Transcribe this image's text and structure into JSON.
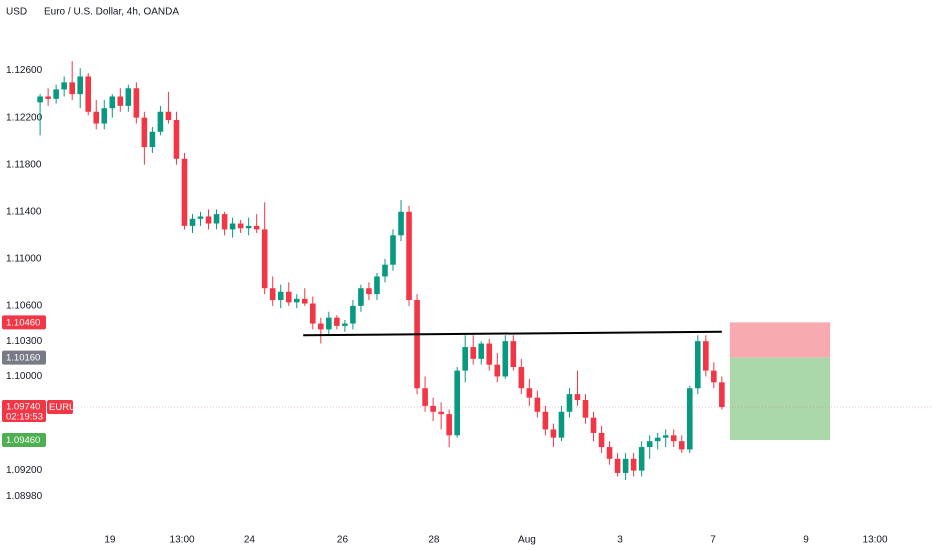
{
  "chart_data": {
    "type": "candlestick",
    "currency": "USD",
    "title": "Euro / U.S. Dollar, 4h, OANDA",
    "symbol": "EURUSD",
    "countdown": "02:19:53",
    "up_color": "#089981",
    "down_color": "#f23645",
    "open": [
      1.1233,
      1.1238,
      1.1236,
      1.1244,
      1.125,
      1.124,
      1.1255,
      1.1225,
      1.1215,
      1.1228,
      1.1238,
      1.123,
      1.1245,
      1.122,
      1.1195,
      1.1208,
      1.1225,
      1.1218,
      1.1185,
      1.1128,
      1.1134,
      1.1136,
      1.113,
      1.1138,
      1.1125,
      1.113,
      1.1126,
      1.1128,
      1.1125,
      1.1075,
      1.1065,
      1.1072,
      1.1063,
      1.1066,
      1.1062,
      1.1045,
      1.104,
      1.105,
      1.1043,
      1.1045,
      1.106,
      1.1075,
      1.107,
      1.1085,
      1.1095,
      1.112,
      1.114,
      1.1065,
      1.099,
      1.0975,
      1.097,
      1.0968,
      1.095,
      1.1005,
      1.1025,
      1.1015,
      1.1028,
      1.101,
      1.1,
      1.103,
      1.1008,
      1.099,
      1.0982,
      1.097,
      1.0955,
      1.0948,
      1.097,
      1.0985,
      1.098,
      1.0965,
      1.0952,
      1.094,
      1.093,
      1.0918,
      1.093,
      1.092,
      1.094,
      1.0945,
      1.0948,
      1.095,
      1.0945,
      1.0938,
      1.099,
      1.103,
      1.1005,
      1.0995
    ],
    "high": [
      1.124,
      1.1245,
      1.1248,
      1.1255,
      1.1268,
      1.1262,
      1.1258,
      1.1235,
      1.1235,
      1.124,
      1.1245,
      1.1248,
      1.125,
      1.1225,
      1.1212,
      1.123,
      1.1242,
      1.1225,
      1.119,
      1.1138,
      1.114,
      1.1142,
      1.1142,
      1.114,
      1.1135,
      1.1133,
      1.1135,
      1.1138,
      1.1148,
      1.1085,
      1.1078,
      1.108,
      1.107,
      1.1075,
      1.1068,
      1.105,
      1.1055,
      1.1052,
      1.1048,
      1.1065,
      1.1078,
      1.108,
      1.1088,
      1.11,
      1.1125,
      1.115,
      1.1145,
      1.107,
      1.1,
      1.0982,
      1.0978,
      1.0972,
      1.1008,
      1.1035,
      1.1035,
      1.103,
      1.1032,
      1.102,
      1.1035,
      1.1035,
      1.1015,
      1.0998,
      1.0988,
      1.0975,
      1.096,
      1.0975,
      1.099,
      1.1005,
      1.0985,
      1.097,
      1.0958,
      1.0945,
      1.0935,
      1.0935,
      1.0935,
      1.0945,
      1.095,
      1.0952,
      1.0955,
      1.0955,
      1.095,
      1.0992,
      1.1035,
      1.1035,
      1.1012,
      1.1
    ],
    "low": [
      1.1205,
      1.123,
      1.1232,
      1.1238,
      1.1235,
      1.1228,
      1.1222,
      1.121,
      1.121,
      1.122,
      1.1225,
      1.1225,
      1.1215,
      1.118,
      1.119,
      1.1205,
      1.1215,
      1.118,
      1.1125,
      1.1122,
      1.1128,
      1.1125,
      1.1125,
      1.112,
      1.1118,
      1.1122,
      1.112,
      1.1122,
      1.107,
      1.106,
      1.1058,
      1.106,
      1.1058,
      1.106,
      1.104,
      1.1028,
      1.1035,
      1.104,
      1.1038,
      1.104,
      1.1055,
      1.1065,
      1.1065,
      1.108,
      1.109,
      1.1115,
      1.106,
      1.0985,
      1.097,
      1.0962,
      1.0955,
      1.094,
      1.0948,
      1.0995,
      1.101,
      1.101,
      1.1005,
      1.0995,
      1.0998,
      1.1005,
      1.0985,
      1.0975,
      1.0965,
      1.095,
      1.094,
      1.0945,
      1.0965,
      1.0975,
      1.096,
      1.0945,
      1.0935,
      1.0925,
      1.0915,
      1.0912,
      1.0915,
      1.0915,
      1.093,
      1.0938,
      1.094,
      1.094,
      1.0935,
      1.0935,
      1.0985,
      1.1,
      1.099,
      1.0972
    ],
    "close": [
      1.1238,
      1.1236,
      1.1244,
      1.125,
      1.124,
      1.1255,
      1.1225,
      1.1215,
      1.1228,
      1.1238,
      1.123,
      1.1245,
      1.122,
      1.1195,
      1.1208,
      1.1225,
      1.1218,
      1.1185,
      1.1128,
      1.1134,
      1.1136,
      1.113,
      1.1138,
      1.1125,
      1.113,
      1.1126,
      1.1128,
      1.1125,
      1.1075,
      1.1065,
      1.1072,
      1.1063,
      1.1066,
      1.1062,
      1.1045,
      1.104,
      1.105,
      1.1043,
      1.1045,
      1.106,
      1.1075,
      1.107,
      1.1085,
      1.1095,
      1.112,
      1.114,
      1.1065,
      1.099,
      1.0975,
      1.097,
      1.0968,
      1.095,
      1.1005,
      1.1025,
      1.1015,
      1.1028,
      1.101,
      1.1,
      1.103,
      1.1008,
      1.099,
      1.0982,
      1.097,
      1.0955,
      1.0948,
      1.097,
      1.0985,
      1.098,
      1.0965,
      1.0952,
      1.094,
      1.093,
      1.0918,
      1.093,
      1.092,
      1.094,
      1.0945,
      1.0948,
      1.095,
      1.0945,
      1.0938,
      1.099,
      1.103,
      1.1005,
      1.0995,
      1.0974
    ],
    "xlim": [
      -5.0,
      111.2
    ],
    "xticks": [
      {
        "value": 8.7,
        "label": "19"
      },
      {
        "value": 17.7,
        "label": "13:00"
      },
      {
        "value": 26.1,
        "label": "24"
      },
      {
        "value": 37.7,
        "label": "26"
      },
      {
        "value": 49.1,
        "label": "28"
      },
      {
        "value": 60.7,
        "label": "Aug"
      },
      {
        "value": 72.3,
        "label": "3"
      },
      {
        "value": 83.9,
        "label": "7"
      },
      {
        "value": 95.5,
        "label": "9"
      },
      {
        "value": 104.1,
        "label": "13:00"
      }
    ],
    "ylim": [
      1.0878,
      1.132
    ],
    "yticks": [
      {
        "value": 1.126,
        "label": "1.12600"
      },
      {
        "value": 1.122,
        "label": "1.12200"
      },
      {
        "value": 1.118,
        "label": "1.11800"
      },
      {
        "value": 1.114,
        "label": "1.11400"
      },
      {
        "value": 1.11,
        "label": "1.11000"
      },
      {
        "value": 1.106,
        "label": "1.10600"
      },
      {
        "value": 1.103,
        "label": "1.10300"
      },
      {
        "value": 1.1,
        "label": "1.10000"
      },
      {
        "value": 1.092,
        "label": "1.09200"
      },
      {
        "value": 1.0898,
        "label": "1.08980"
      }
    ],
    "last_price": {
      "value": 1.0974,
      "label": "1.09740"
    },
    "trendline": {
      "x": [
        32.8,
        85
      ],
      "y": [
        1.1035,
        1.1038
      ]
    },
    "position": {
      "x": [
        86,
        98.5
      ],
      "stop": {
        "value": 1.1046,
        "label": "1.10460",
        "color": "#f23645"
      },
      "entry": {
        "value": 1.1016,
        "label": "1.10160",
        "color": "#787b86"
      },
      "target": {
        "value": 1.0946,
        "label": "1.09460",
        "color": "#4caf50"
      }
    }
  }
}
